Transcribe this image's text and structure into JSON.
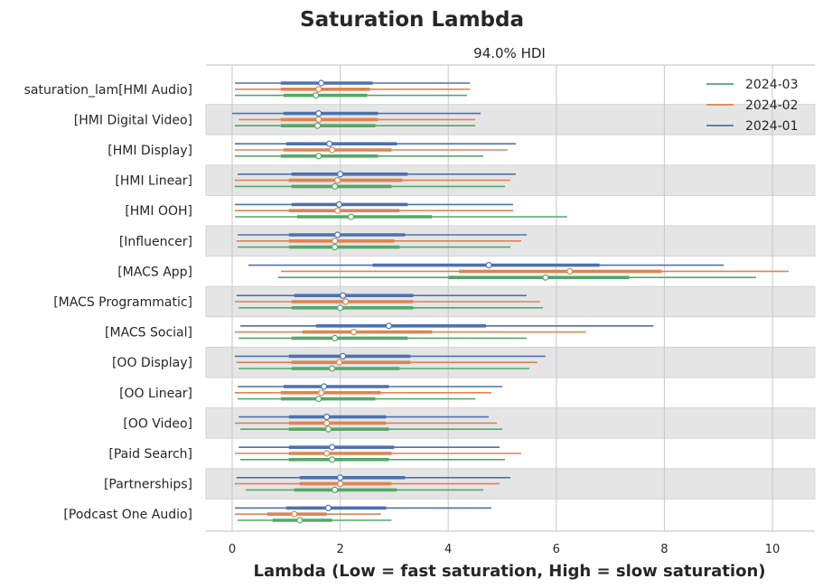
{
  "chart_data": {
    "type": "forest",
    "title": "Saturation Lambda",
    "subtitle": "94.0% HDI",
    "xlabel": "Lambda (Low = fast saturation, High = slow saturation)",
    "ylabel": "",
    "xlim": [
      -0.5,
      10.8
    ],
    "xticks": [
      0,
      2,
      4,
      6,
      8,
      10
    ],
    "grid": "vertical",
    "legend_position": "top-right",
    "legend": [
      "2024-03",
      "2024-02",
      "2024-01"
    ],
    "categories": [
      "saturation_lam[HMI Audio]",
      "[HMI Digital Video]",
      "[HMI Display]",
      "[HMI Linear]",
      "[HMI OOH]",
      "[Influencer]",
      "[MACS App]",
      "[MACS Programmatic]",
      "[MACS Social]",
      "[OO Display]",
      "[OO Linear]",
      "[OO Video]",
      "[Paid Search]",
      "[Partnerships]",
      "[Podcast One Audio]"
    ],
    "series": [
      {
        "name": "2024-01",
        "color": "#4c72b0",
        "median": [
          1.65,
          1.6,
          1.8,
          2.0,
          1.98,
          1.95,
          4.75,
          2.05,
          2.9,
          2.05,
          1.7,
          1.75,
          1.85,
          2.0,
          1.78
        ],
        "q_low": [
          0.9,
          0.95,
          1.0,
          1.1,
          1.1,
          1.05,
          2.6,
          1.15,
          1.55,
          1.05,
          0.95,
          1.05,
          1.05,
          1.25,
          1.0
        ],
        "q_high": [
          2.6,
          2.7,
          3.05,
          3.25,
          3.25,
          3.2,
          6.8,
          3.35,
          4.7,
          3.3,
          2.9,
          2.85,
          3.0,
          3.2,
          2.85
        ],
        "hdi_low": [
          0.05,
          0.0,
          0.05,
          0.1,
          0.05,
          0.1,
          0.3,
          0.08,
          0.15,
          0.05,
          0.1,
          0.12,
          0.12,
          0.08,
          0.05
        ],
        "hdi_high": [
          4.4,
          4.6,
          5.25,
          5.25,
          5.2,
          5.45,
          9.1,
          5.45,
          7.8,
          5.8,
          5.0,
          4.75,
          4.95,
          5.15,
          4.8
        ]
      },
      {
        "name": "2024-02",
        "color": "#dd8452",
        "median": [
          1.6,
          1.6,
          1.85,
          1.95,
          1.95,
          1.9,
          6.25,
          2.1,
          2.25,
          1.98,
          1.65,
          1.75,
          1.75,
          2.0,
          1.15
        ],
        "q_low": [
          0.9,
          0.9,
          0.95,
          1.05,
          1.05,
          1.05,
          4.2,
          1.1,
          1.3,
          1.1,
          0.9,
          1.05,
          1.05,
          1.25,
          0.65
        ],
        "q_high": [
          2.55,
          2.7,
          2.95,
          3.15,
          3.1,
          3.0,
          7.95,
          3.35,
          3.7,
          3.3,
          2.75,
          2.85,
          2.95,
          2.95,
          1.75
        ],
        "hdi_low": [
          0.05,
          0.12,
          0.05,
          0.05,
          0.05,
          0.08,
          0.9,
          0.05,
          0.05,
          0.08,
          0.05,
          0.05,
          0.05,
          0.05,
          0.05
        ],
        "hdi_high": [
          4.4,
          4.5,
          5.1,
          5.15,
          5.2,
          5.35,
          10.3,
          5.7,
          6.55,
          5.65,
          4.8,
          4.9,
          5.35,
          4.95,
          2.75
        ]
      },
      {
        "name": "2024-03",
        "color": "#55a868",
        "median": [
          1.55,
          1.58,
          1.6,
          1.9,
          2.2,
          1.9,
          5.8,
          2.0,
          1.9,
          1.85,
          1.6,
          1.78,
          1.85,
          1.9,
          1.25
        ],
        "q_low": [
          0.95,
          0.9,
          0.9,
          1.1,
          1.2,
          1.05,
          4.0,
          1.1,
          1.1,
          1.1,
          0.9,
          1.05,
          1.05,
          1.15,
          0.75
        ],
        "q_high": [
          2.5,
          2.65,
          2.7,
          2.95,
          3.7,
          3.1,
          7.35,
          3.35,
          3.25,
          3.1,
          2.65,
          2.9,
          2.9,
          3.05,
          1.85
        ],
        "hdi_low": [
          0.05,
          0.05,
          0.05,
          0.05,
          0.05,
          0.1,
          0.85,
          0.12,
          0.12,
          0.12,
          0.1,
          0.15,
          0.15,
          0.25,
          0.1
        ],
        "hdi_high": [
          4.35,
          4.5,
          4.65,
          5.05,
          6.2,
          5.15,
          9.7,
          5.75,
          5.45,
          5.5,
          4.5,
          5.0,
          5.05,
          4.65,
          2.95
        ]
      }
    ]
  }
}
